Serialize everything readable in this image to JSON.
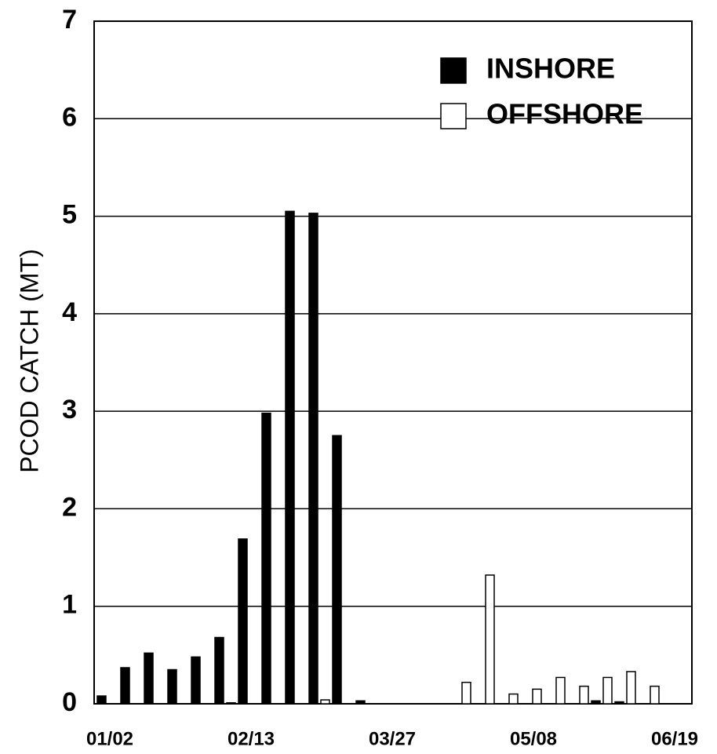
{
  "chart_data": {
    "type": "bar",
    "y_label": "PCOD CATCH (MT)",
    "categories": [
      "01/02",
      null,
      null,
      null,
      null,
      null,
      "02/13",
      null,
      null,
      null,
      null,
      null,
      "03/27",
      null,
      null,
      null,
      null,
      null,
      "05/08",
      null,
      null,
      null,
      null,
      null,
      "06/19"
    ],
    "series": [
      {
        "name": "INSHORE",
        "color": "#000000",
        "values": [
          0.08,
          0.37,
          0.52,
          0.35,
          0.48,
          0.68,
          1.69,
          2.98,
          5.05,
          5.03,
          2.75,
          0.03,
          0,
          0,
          0,
          0,
          0,
          0,
          0,
          0,
          0,
          0.03,
          0.02,
          0,
          0
        ]
      },
      {
        "name": "OFFSHORE",
        "color": "#ffffff",
        "values": [
          0,
          0,
          0,
          0,
          0,
          0.01,
          0,
          0,
          0,
          0.04,
          0,
          0,
          0,
          0,
          0,
          0.22,
          1.32,
          0.1,
          0.15,
          0.27,
          0.18,
          0.27,
          0.33,
          0.18,
          0
        ]
      }
    ],
    "ylim": [
      0,
      7
    ],
    "yticks": [
      0,
      1,
      2,
      3,
      4,
      5,
      6,
      7
    ],
    "grid": true,
    "legend": "upper right"
  }
}
